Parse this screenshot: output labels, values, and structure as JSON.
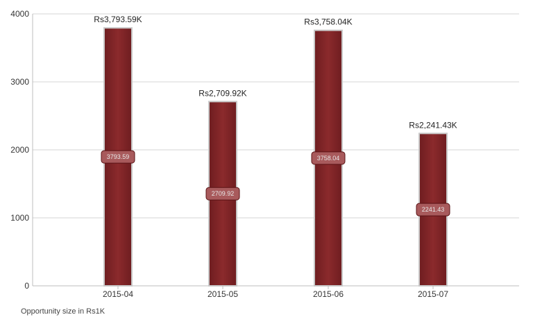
{
  "chart_data": {
    "type": "bar",
    "categories": [
      "2015-04",
      "2015-05",
      "2015-06",
      "2015-07"
    ],
    "values": [
      3793.59,
      2709.92,
      3758.04,
      2241.43
    ],
    "top_labels": [
      "Rs3,793.59K",
      "Rs2,709.92K",
      "Rs3,758.04K",
      "Rs2,241.43K"
    ],
    "inner_labels": [
      "3793.59",
      "2709.92",
      "3758.04",
      "2241.43"
    ],
    "y_ticks": [
      "0",
      "1000",
      "2000",
      "3000",
      "4000"
    ],
    "ylim": [
      0,
      4000
    ],
    "grid": true,
    "xlabel": "",
    "ylabel": "",
    "bar_color": "#8b2a2c",
    "bar_border_color": "#c8c8c8"
  },
  "caption": "Opportunity size in Rs1K"
}
